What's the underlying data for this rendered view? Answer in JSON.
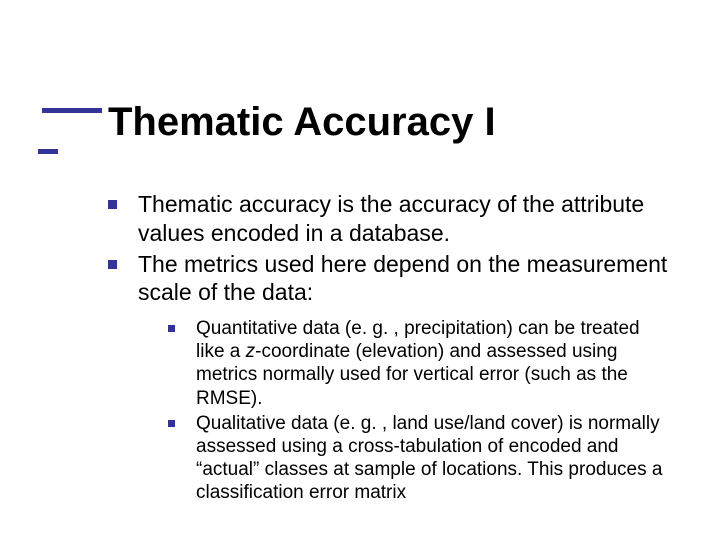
{
  "title": "Thematic Accuracy I",
  "bullets": [
    {
      "text": "Thematic accuracy is the accuracy of the attribute values encoded in a database."
    },
    {
      "text": "The metrics used here depend on the measurement scale of the data:"
    }
  ],
  "sub": [
    {
      "pre": "Quantitative data (e. g. , precipitation) can be treated like a ",
      "em": "z",
      "post": "-coordinate (elevation) and assessed using metrics normally used for vertical error (such as the RMSE)."
    },
    {
      "pre": "Qualitative data (e. g. , land use/land cover) is normally assessed using a cross-tabulation of encoded and “actual” classes at sample of locations. This produces a classification error matrix",
      "em": "",
      "post": ""
    }
  ],
  "colors": {
    "accent": "#333399",
    "text": "#000000",
    "background": "#ffffff"
  },
  "typography": {
    "title_fontsize": 40,
    "body_fontsize": 23,
    "sub_fontsize": 19,
    "font_family": "Verdana"
  }
}
